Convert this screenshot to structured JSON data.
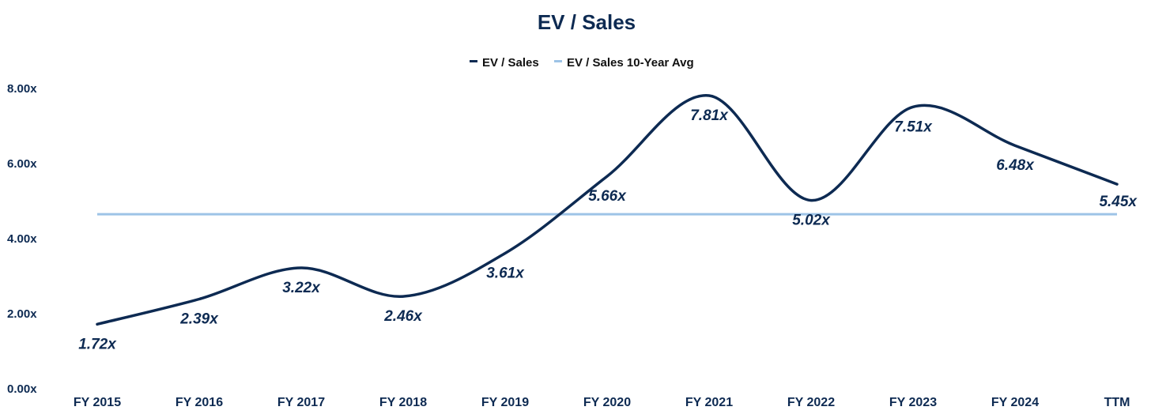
{
  "chart_data": {
    "type": "line",
    "title": "EV / Sales",
    "categories": [
      "FY 2015",
      "FY 2016",
      "FY 2017",
      "FY 2018",
      "FY 2019",
      "FY 2020",
      "FY 2021",
      "FY 2022",
      "FY 2023",
      "FY 2024",
      "TTM"
    ],
    "series": [
      {
        "name": "EV / Sales",
        "values": [
          1.72,
          2.39,
          3.22,
          2.46,
          3.61,
          5.66,
          7.81,
          5.02,
          7.51,
          6.48,
          5.45
        ],
        "labels": [
          "1.72x",
          "2.39x",
          "3.22x",
          "2.46x",
          "3.61x",
          "5.66x",
          "7.81x",
          "5.02x",
          "7.51x",
          "6.48x",
          "5.45x"
        ],
        "color": "#0d2a52"
      },
      {
        "name": "EV / Sales 10-Year Avg",
        "values": [
          4.65,
          4.65,
          4.65,
          4.65,
          4.65,
          4.65,
          4.65,
          4.65,
          4.65,
          4.65,
          4.65
        ],
        "color": "#9dc3e6"
      }
    ],
    "yticks": [
      "0.00x",
      "2.00x",
      "4.00x",
      "6.00x",
      "8.00x"
    ],
    "ylim": [
      0,
      8
    ],
    "legend": "top-center",
    "grid": false
  }
}
